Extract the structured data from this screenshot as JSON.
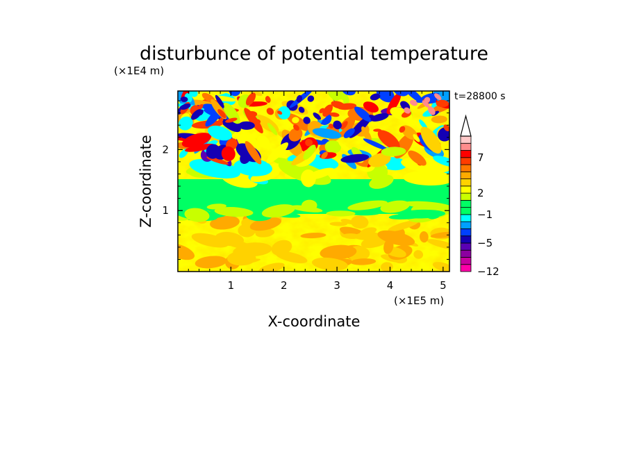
{
  "chart_data": {
    "type": "heatmap",
    "title": "disturbunce of potential temperature",
    "time_label": "t=28800 s",
    "xlabel": "X-coordinate",
    "ylabel": "Z-coordinate",
    "x_unit": "(×1E5 m)",
    "y_unit": "(×1E4 m)",
    "xlim": [
      0,
      5.12
    ],
    "ylim": [
      0,
      2.96
    ],
    "x_ticks": [
      1,
      2,
      3,
      4,
      5
    ],
    "y_ticks": [
      1,
      2
    ],
    "x_tick_labels": [
      "1",
      "2",
      "3",
      "4",
      "5"
    ],
    "y_tick_labels": [
      "1",
      "2"
    ],
    "grid": false,
    "colorbar": {
      "levels": [
        -12,
        -10,
        -8,
        -6,
        -5,
        -4,
        -3,
        -2,
        -1,
        0,
        1,
        2,
        3,
        4,
        5,
        6,
        7,
        8,
        9,
        10
      ],
      "colors": [
        "#ff00a8",
        "#c800a0",
        "#8c00a0",
        "#5a00b4",
        "#1400b4",
        "#0040ff",
        "#00a0ff",
        "#00ffff",
        "#00ff64",
        "#00ff64",
        "#c8ff00",
        "#ffff00",
        "#ffd200",
        "#ffaa00",
        "#ff7800",
        "#ff3c00",
        "#ff0000",
        "#ff8c8c",
        "#ffc8c8"
      ],
      "tick_labels": [
        {
          "value": -12,
          "text": "−12"
        },
        {
          "value": -5,
          "text": "−5"
        },
        {
          "value": -1,
          "text": "−1"
        },
        {
          "value": 2,
          "text": "2"
        },
        {
          "value": 7,
          "text": "7"
        }
      ],
      "extend": "max"
    },
    "field_description_bands": [
      {
        "z_range": [
          0.0,
          0.95
        ],
        "dominant_value_range": [
          1,
          3
        ]
      },
      {
        "z_range": [
          0.95,
          1.55
        ],
        "dominant_value_range": [
          -1,
          0
        ]
      },
      {
        "z_range": [
          1.55,
          2.96
        ],
        "dominant_value_range": [
          -6,
          6
        ]
      }
    ]
  }
}
